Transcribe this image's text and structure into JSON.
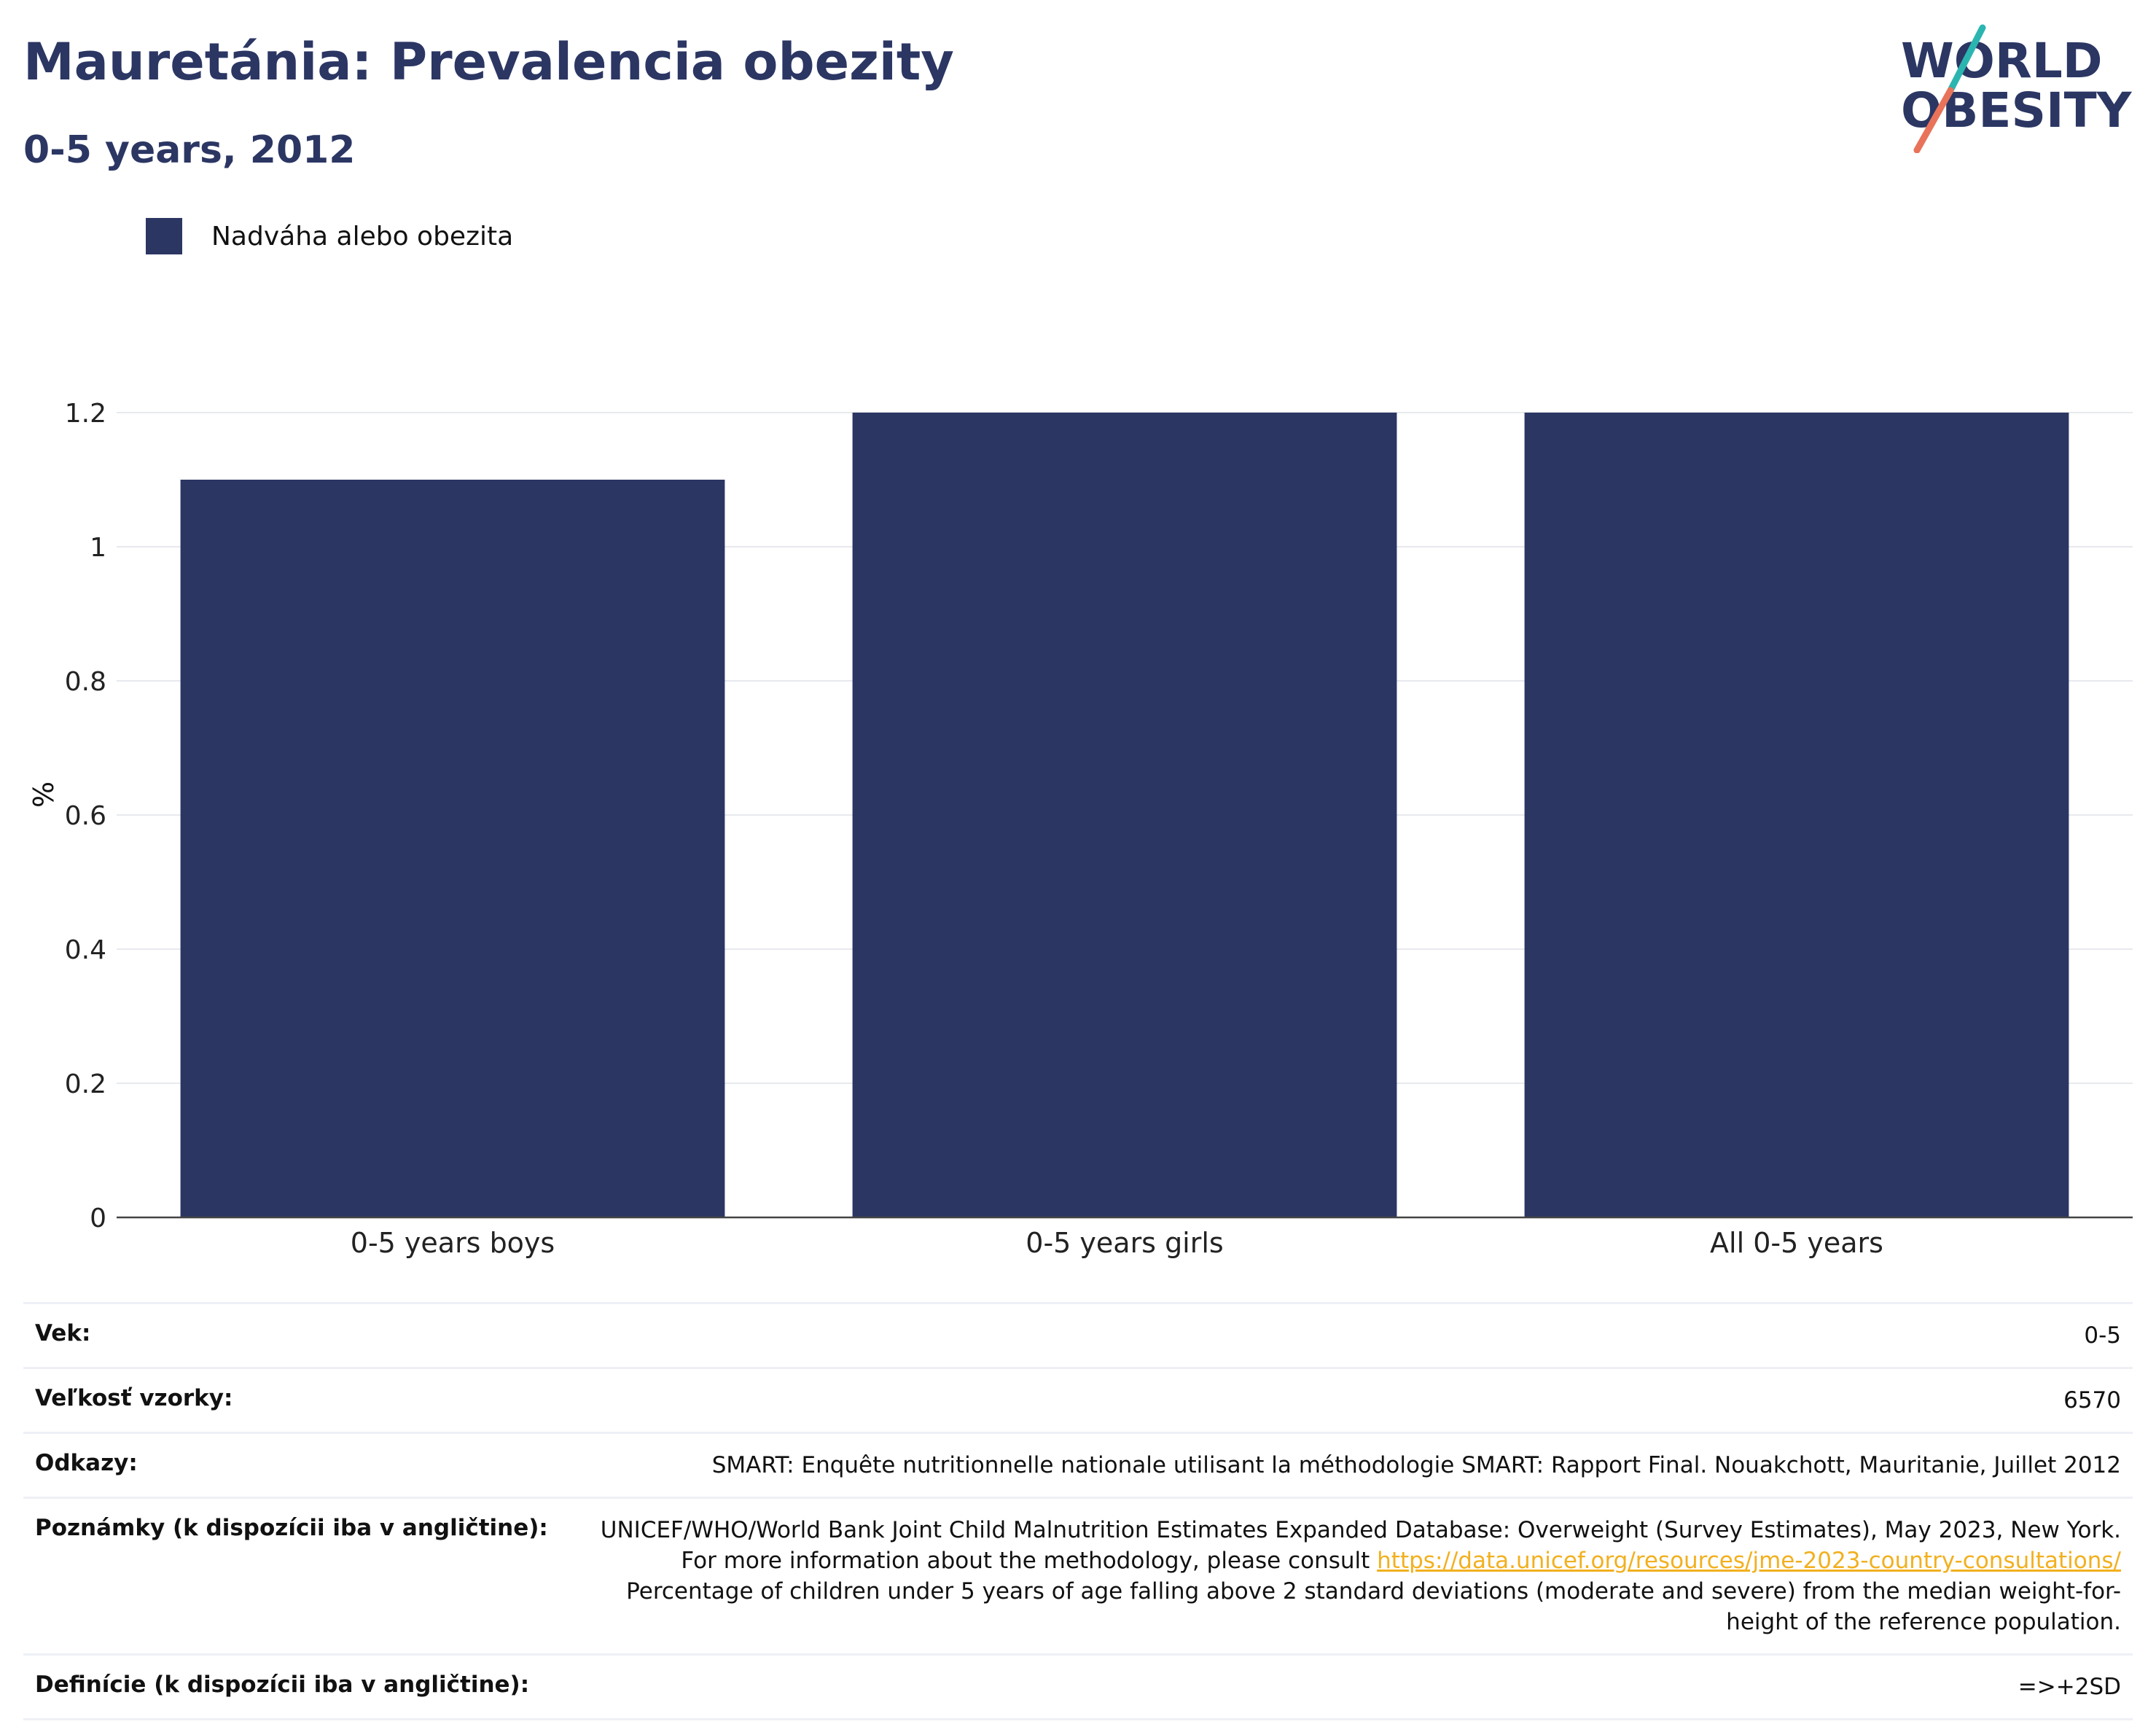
{
  "header": {
    "title": "Mauretánia: Prevalencia obezity",
    "subtitle": "0-5 years, 2012"
  },
  "logo": {
    "line1": "WORLD",
    "line2": "OBESITY",
    "colors": {
      "text": "#2b3663",
      "slash_top": "#2bb5b0",
      "slash_bottom": "#e8735a"
    }
  },
  "legend": {
    "items": [
      {
        "label": "Nadváha alebo obezita",
        "color": "#2b3663"
      }
    ]
  },
  "chart_data": {
    "type": "bar",
    "title": "Mauretánia: Prevalencia obezity",
    "subtitle": "0-5 years, 2012",
    "ylabel": "%",
    "xlabel": "",
    "categories": [
      "0-5 years boys",
      "0-5 years girls",
      "All 0-5 years"
    ],
    "series": [
      {
        "name": "Nadváha alebo obezita",
        "values": [
          1.1,
          1.2,
          1.2
        ],
        "color": "#2b3663"
      }
    ],
    "ylim": [
      0,
      1.2
    ],
    "yticks": [
      0,
      0.2,
      0.4,
      0.6,
      0.8,
      1,
      1.2
    ],
    "ytick_labels": [
      "0",
      "0.2",
      "0.4",
      "0.6",
      "0.8",
      "1",
      "1.2"
    ],
    "grid": true,
    "legend_position": "top-left"
  },
  "details": {
    "age": {
      "label": "Vek:",
      "value": "0-5"
    },
    "sample": {
      "label": "Veľkosť vzorky:",
      "value": "6570"
    },
    "references": {
      "label": "Odkazy:",
      "value": "SMART: Enquête nutritionnelle nationale utilisant la méthodologie SMART: Rapport Final. Nouakchott, Mauritanie, Juillet 2012"
    },
    "notes": {
      "label": "Poznámky (k dispozícii iba v angličtine):",
      "text_before": "UNICEF/WHO/World Bank Joint Child Malnutrition Estimates Expanded Database: Overweight (Survey Estimates), May 2023, New York. For more information about the methodology, please consult ",
      "link": "https://data.unicef.org/resources/jme-2023-country-consultations/",
      "text_after": " Percentage of children under 5 years of age falling above 2 standard deviations (moderate and severe) from the median weight-for-height of the reference population."
    },
    "definitions": {
      "label": "Definície (k dispozícii iba v angličtine):",
      "value": "=>+2SD"
    }
  }
}
